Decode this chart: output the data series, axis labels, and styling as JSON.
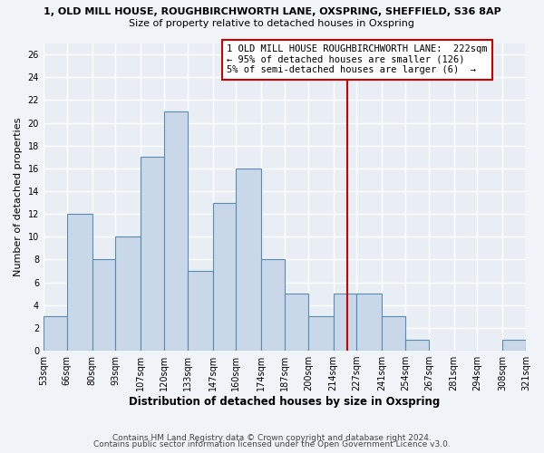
{
  "title_top": "1, OLD MILL HOUSE, ROUGHBIRCHWORTH LANE, OXSPRING, SHEFFIELD, S36 8AP",
  "title_sub": "Size of property relative to detached houses in Oxspring",
  "xlabel": "Distribution of detached houses by size in Oxspring",
  "ylabel": "Number of detached properties",
  "bin_edges": [
    53,
    66,
    80,
    93,
    107,
    120,
    133,
    147,
    160,
    174,
    187,
    200,
    214,
    227,
    241,
    254,
    267,
    281,
    294,
    308,
    321
  ],
  "counts": [
    3,
    12,
    8,
    10,
    17,
    21,
    7,
    13,
    16,
    8,
    5,
    3,
    5,
    5,
    3,
    1,
    0,
    0,
    0,
    1
  ],
  "bar_facecolor": "#c8d8e8",
  "bar_edgecolor": "#5a8ab0",
  "vline_x": 222,
  "vline_color": "#cc0000",
  "annotation_line1": "1 OLD MILL HOUSE ROUGHBIRCHWORTH LANE:  222sqm",
  "annotation_line2": "← 95% of detached houses are smaller (126)",
  "annotation_line3": "5% of semi-detached houses are larger (6)  →",
  "ylim": [
    0,
    27
  ],
  "yticks": [
    0,
    2,
    4,
    6,
    8,
    10,
    12,
    14,
    16,
    18,
    20,
    22,
    24,
    26
  ],
  "tick_labels": [
    "53sqm",
    "66sqm",
    "80sqm",
    "93sqm",
    "107sqm",
    "120sqm",
    "133sqm",
    "147sqm",
    "160sqm",
    "174sqm",
    "187sqm",
    "200sqm",
    "214sqm",
    "227sqm",
    "241sqm",
    "254sqm",
    "267sqm",
    "281sqm",
    "294sqm",
    "308sqm",
    "321sqm"
  ],
  "footer_line1": "Contains HM Land Registry data © Crown copyright and database right 2024.",
  "footer_line2": "Contains public sector information licensed under the Open Government Licence v3.0.",
  "background_color": "#f0f4f8",
  "plot_bg_color": "#e8eef4",
  "grid_color": "#ffffff",
  "title_fontsize": 8.0,
  "subtitle_fontsize": 8.0,
  "xlabel_fontsize": 8.5,
  "ylabel_fontsize": 8.0,
  "tick_fontsize": 7.0,
  "annot_fontsize": 7.5,
  "footer_fontsize": 6.5
}
